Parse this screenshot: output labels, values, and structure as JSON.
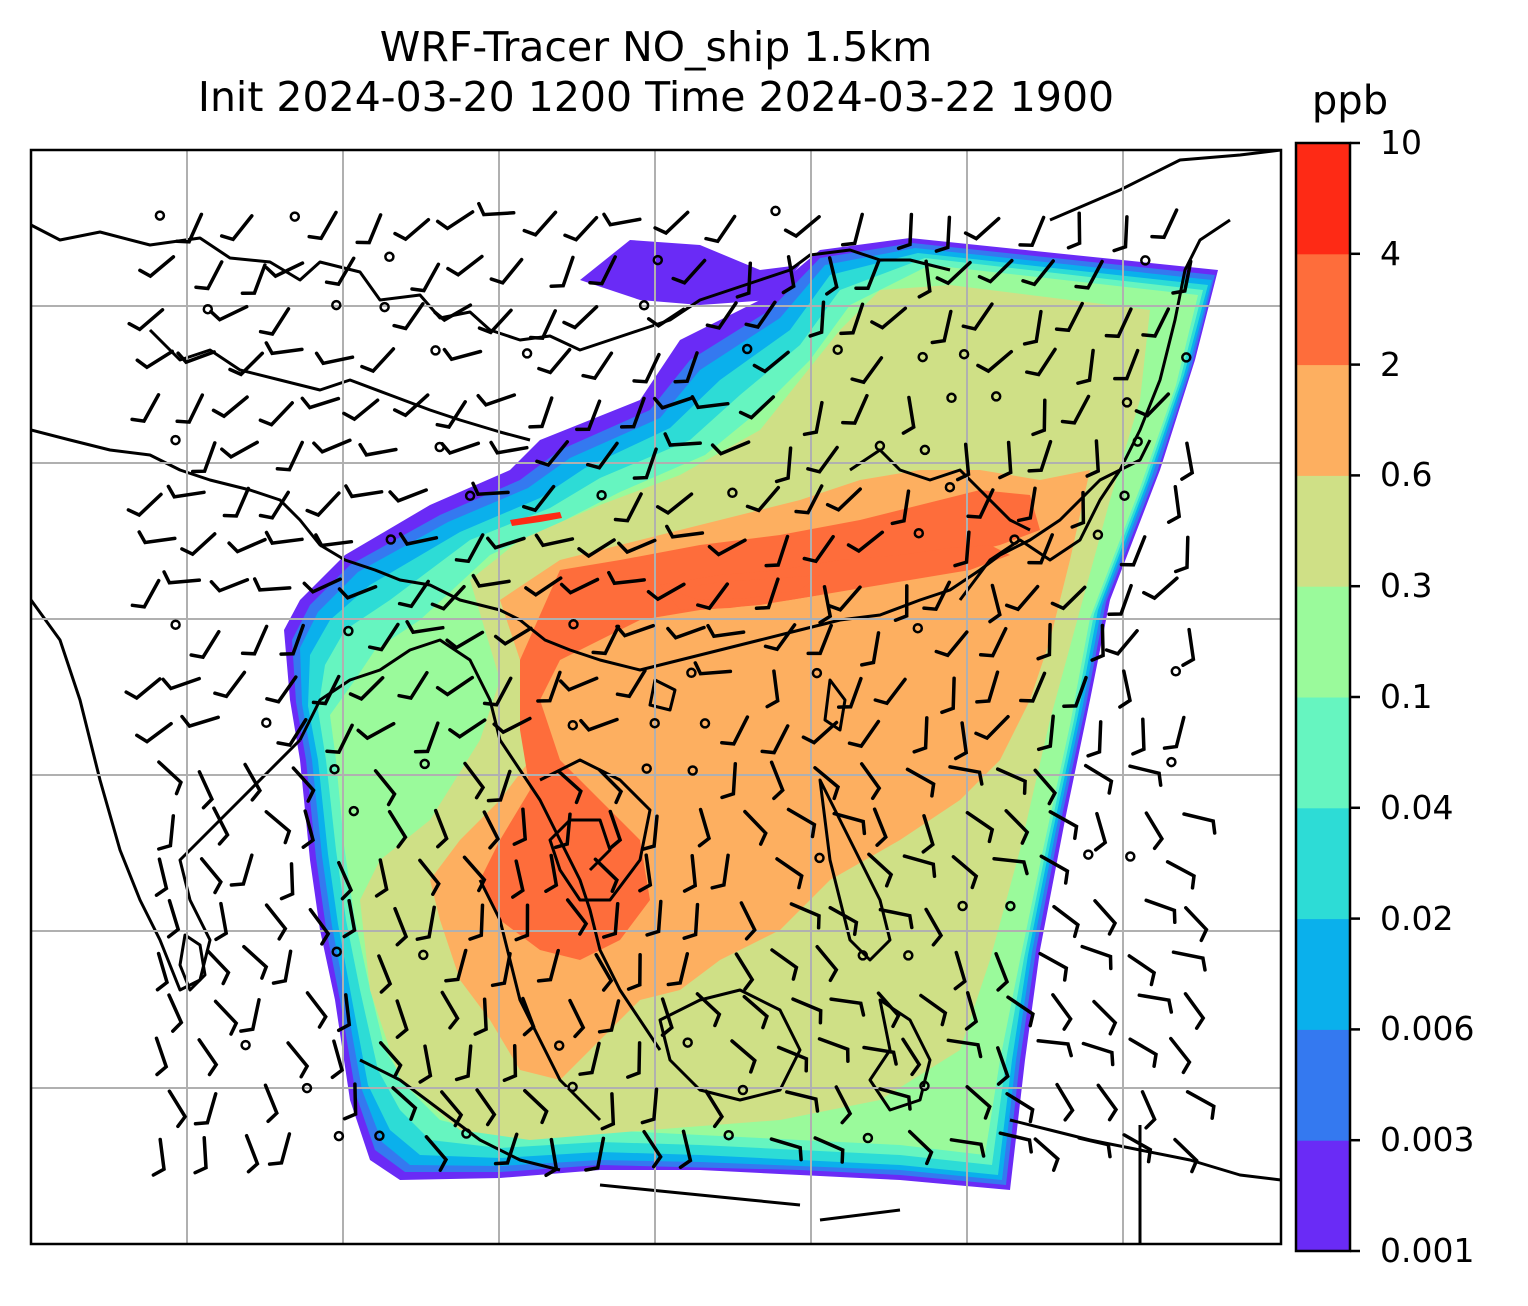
{
  "title": {
    "line1": "WRF-Tracer NO_ship 1.5km",
    "line2": "Init 2024-03-20 1200 Time 2024-03-22 1900"
  },
  "colorbar": {
    "unit": "ppb",
    "ticks": [
      "0.001",
      "0.003",
      "0.006",
      "0.02",
      "0.04",
      "0.1",
      "0.3",
      "0.6",
      "2",
      "4",
      "10"
    ],
    "colors": [
      "#6a2bf6",
      "#3479f0",
      "#0ab0ec",
      "#2ddcd6",
      "#66f5c0",
      "#9afa9b",
      "#cfe086",
      "#fdaf60",
      "#fe6d3b",
      "#fe2a15"
    ]
  },
  "map": {
    "projection": "equirectangular",
    "gridlines": true,
    "coastlines": true,
    "wind_barbs": true
  }
}
